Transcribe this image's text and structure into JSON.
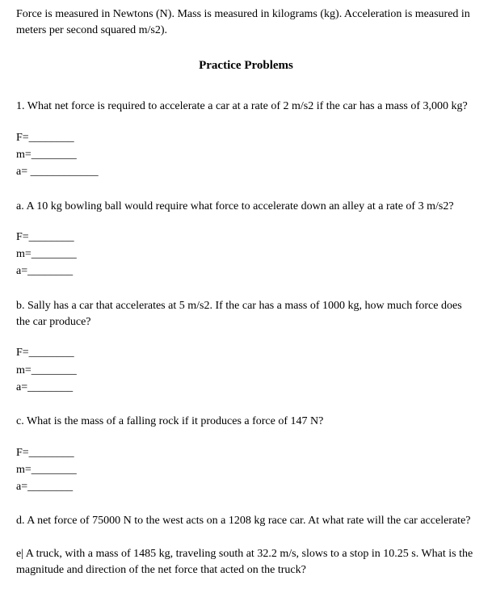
{
  "intro": "Force is measured in Newtons (N). Mass is measured in kilograms (kg). Acceleration is measured in meters per second squared m/s2).",
  "section_title": "Practice Problems",
  "blank_labels": {
    "F": "F=________",
    "m": "m=________",
    "a_long": "a= ____________",
    "a_short": "a=________"
  },
  "problems": [
    {
      "label": "1.",
      "text": "1. What net force is required to accelerate a car at a rate of 2 m/s2 if the car has a mass of 3,000 kg?",
      "show_blanks": true,
      "a_variant": "a_long"
    },
    {
      "label": "a.",
      "text": "a. A 10 kg bowling ball would require what force to accelerate down an alley at a rate of 3 m/s2?",
      "show_blanks": true,
      "a_variant": "a_short"
    },
    {
      "label": "b.",
      "text": "b. Sally has a car that accelerates at 5 m/s2. If the car has a mass of 1000 kg, how much force does the car produce?",
      "show_blanks": true,
      "a_variant": "a_short"
    },
    {
      "label": "c.",
      "text": "c. What is the mass of a falling rock if it produces a force of 147 N?",
      "show_blanks": true,
      "a_variant": "a_short"
    },
    {
      "label": "d.",
      "text": "d. A net force of 75000 N to the west acts on a 1208 kg race car. At what rate will the car accelerate?",
      "show_blanks": false
    },
    {
      "label": "e|",
      "text": "e| A truck, with a mass of 1485 kg, traveling south at 32.2 m/s, slows to a stop in 10.25 s. What is the magnitude and direction of the net force that acted on the truck?",
      "show_blanks": false
    }
  ]
}
